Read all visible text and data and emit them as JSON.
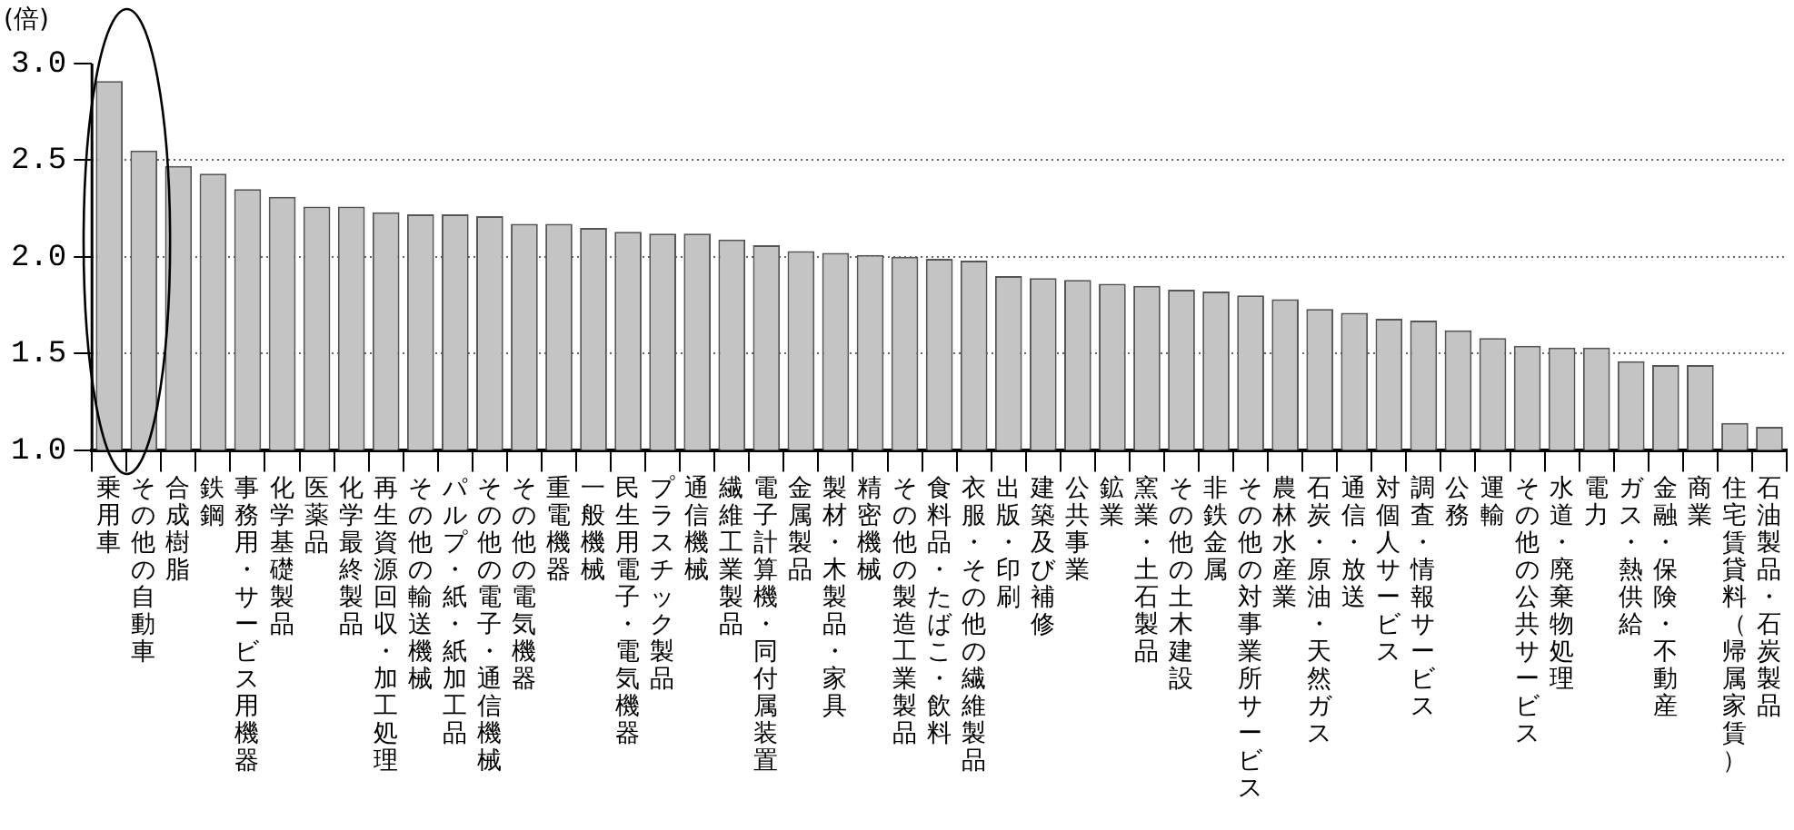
{
  "chart_data": {
    "type": "bar",
    "ylabel": "(倍)",
    "categories": [
      "乗用車",
      "その他の自動車",
      "合成樹脂",
      "鉄鋼",
      "事務用・サービス用機器",
      "化学基礎製品",
      "医薬品",
      "化学最終製品",
      "再生資源回収・加工処理",
      "その他の輸送機械",
      "パルプ・紙・紙加工品",
      "その他の電子・通信機械",
      "その他の電気機器",
      "重電機器",
      "一般機械",
      "民生用電子・電気機器",
      "プラスチック製品",
      "通信機械",
      "繊維工業製品",
      "電子計算機・同付属装置",
      "金属製品",
      "製材・木製品・家具",
      "精密機械",
      "その他の製造工業製品",
      "食料品・たばこ・飲料",
      "衣服・その他の繊維製品",
      "出版・印刷",
      "建築及び補修",
      "公共事業",
      "鉱業",
      "窯業・土石製品",
      "その他の土木建設",
      "非鉄金属",
      "その他の対事業所サービス",
      "農林水産業",
      "石炭・原油・天然ガス",
      "通信・放送",
      "対個人サービス",
      "調査・情報サービス",
      "公務",
      "運輸",
      "その他の公共サービス",
      "水道・廃棄物処理",
      "電力",
      "ガス・熱供給",
      "金融・保険・不動産",
      "商業",
      "住宅賃貸料（帰属家賃）",
      "石油製品・石炭製品"
    ],
    "values": [
      2.91,
      2.55,
      2.47,
      2.43,
      2.35,
      2.31,
      2.26,
      2.26,
      2.23,
      2.22,
      2.22,
      2.21,
      2.17,
      2.17,
      2.15,
      2.13,
      2.12,
      2.12,
      2.09,
      2.06,
      2.03,
      2.02,
      2.01,
      2.0,
      1.99,
      1.98,
      1.9,
      1.89,
      1.88,
      1.86,
      1.85,
      1.83,
      1.82,
      1.8,
      1.78,
      1.73,
      1.71,
      1.68,
      1.67,
      1.62,
      1.58,
      1.54,
      1.53,
      1.53,
      1.46,
      1.44,
      1.44,
      1.14,
      1.12
    ],
    "color": "#c4c4c4",
    "ylim": [
      1,
      3
    ],
    "yticks": [
      {
        "value": 1,
        "label": "1.0"
      },
      {
        "value": 1.5,
        "label": "1.5"
      },
      {
        "value": 2,
        "label": "2.0"
      },
      {
        "value": 2.5,
        "label": "2.5"
      },
      {
        "value": 3,
        "label": "3.0"
      }
    ],
    "grid": "y",
    "legend": false
  }
}
